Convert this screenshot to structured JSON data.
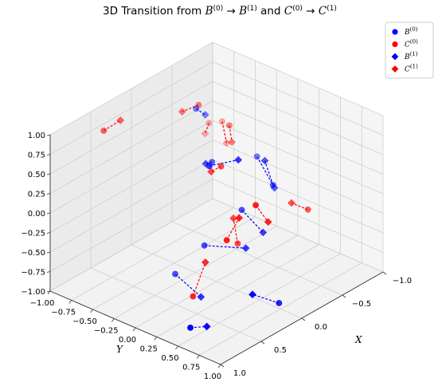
{
  "chart_data": {
    "type": "scatter",
    "projection": "3d",
    "title": "3D Transition from B⁽⁰⁾ → B⁽¹⁾ and C⁽⁰⁾ → C⁽¹⁾",
    "title_parts": {
      "prefix": "3D Transition from ",
      "b0": "B",
      "sup0": "(0)",
      "arrow": " → ",
      "b1": "B",
      "sup1": "(1)",
      "and": " and ",
      "c0": "C",
      "c1": "C"
    },
    "xlabel": "X",
    "ylabel": "Y",
    "zlabel": "",
    "xlim": [
      -1,
      1
    ],
    "ylim": [
      -1,
      1
    ],
    "zlim": [
      -1,
      1
    ],
    "x_ticks": [
      "−1.0",
      "−0.5",
      "0.0",
      "0.5",
      "1.0"
    ],
    "y_ticks": [
      "−1.00",
      "−0.75",
      "−0.50",
      "−0.25",
      "0.00",
      "0.25",
      "0.50",
      "0.75",
      "1.00"
    ],
    "z_ticks": [
      "−1.00",
      "−0.75",
      "−0.50",
      "−0.25",
      "0.00",
      "0.25",
      "0.50",
      "0.75",
      "1.00"
    ],
    "grid": true,
    "legend": {
      "location": "top-right",
      "entries": [
        {
          "base": "B",
          "sup": "(0)",
          "marker": "circle",
          "color": "#0000ff"
        },
        {
          "base": "C",
          "sup": "(0)",
          "marker": "circle",
          "color": "#ff0000"
        },
        {
          "base": "B",
          "sup": "(1)",
          "marker": "diamond",
          "color": "#0000ff"
        },
        {
          "base": "C",
          "sup": "(1)",
          "marker": "diamond",
          "color": "#ff0000"
        }
      ]
    },
    "colors": {
      "B": "#0000ff",
      "C": "#ff0000"
    },
    "transitions": {
      "B": [
        {
          "start": [
            0.3,
            0.2,
            0.75
          ],
          "end": [
            0.1,
            0.35,
            0.78
          ]
        },
        {
          "start": [
            -0.22,
            -0.45,
            0.87
          ],
          "end": [
            -0.28,
            -0.4,
            0.78
          ]
        },
        {
          "start": [
            -0.08,
            -0.13,
            0.42
          ],
          "end": [
            0.05,
            -0.08,
            0.5
          ]
        },
        {
          "start": [
            -0.55,
            -0.05,
            0.25
          ],
          "end": [
            -0.45,
            0.25,
            0.05
          ]
        },
        {
          "start": [
            -0.38,
            0.3,
            0.15
          ],
          "end": [
            -0.3,
            0.28,
            0.5
          ]
        },
        {
          "start": [
            -0.1,
            0.2,
            -0.05
          ],
          "end": [
            -0.1,
            0.45,
            -0.22
          ]
        },
        {
          "start": [
            0.15,
            0.0,
            -0.45
          ],
          "end": [
            0.06,
            0.4,
            -0.35
          ]
        },
        {
          "start": [
            0.05,
            0.78,
            -0.88
          ],
          "end": [
            0.45,
            0.85,
            -0.5
          ]
        },
        {
          "start": [
            0.3,
            -0.2,
            -0.82
          ],
          "end": [
            0.35,
            0.15,
            -0.92
          ]
        },
        {
          "start": [
            0.9,
            0.55,
            -0.8
          ],
          "end": [
            0.75,
            0.6,
            -0.85
          ]
        }
      ],
      "C": [
        {
          "start": [
            0.55,
            -0.8,
            0.88
          ],
          "end": [
            0.45,
            -0.7,
            1.0
          ]
        },
        {
          "start": [
            -0.25,
            -0.45,
            0.9
          ],
          "end": [
            -0.1,
            -0.5,
            0.88
          ]
        },
        {
          "start": [
            -0.45,
            -0.28,
            0.6
          ],
          "end": [
            -0.45,
            -0.25,
            0.4
          ]
        },
        {
          "start": [
            0.05,
            0.1,
            0.55
          ],
          "end": [
            0.12,
            0.05,
            0.5
          ]
        },
        {
          "start": [
            -0.75,
            -0.65,
            0.3
          ],
          "end": [
            -0.7,
            -0.55,
            0.1
          ]
        },
        {
          "start": [
            0.2,
            0.65,
            0.4
          ],
          "end": [
            0.1,
            0.7,
            0.15
          ]
        },
        {
          "start": [
            0.4,
            0.5,
            0.0
          ],
          "end": [
            0.3,
            0.55,
            0.25
          ]
        },
        {
          "start": [
            -0.05,
            0.2,
            -0.45
          ],
          "end": [
            -0.05,
            0.15,
            -0.15
          ]
        },
        {
          "start": [
            -0.85,
            -0.9,
            0.1
          ],
          "end": [
            -0.75,
            -0.85,
            0.05
          ]
        },
        {
          "start": [
            -0.6,
            0.5,
            -0.2
          ],
          "end": [
            -0.45,
            0.45,
            -0.05
          ]
        },
        {
          "start": [
            0.5,
            0.2,
            -0.8
          ],
          "end": [
            0.4,
            0.25,
            -0.4
          ]
        }
      ]
    }
  }
}
